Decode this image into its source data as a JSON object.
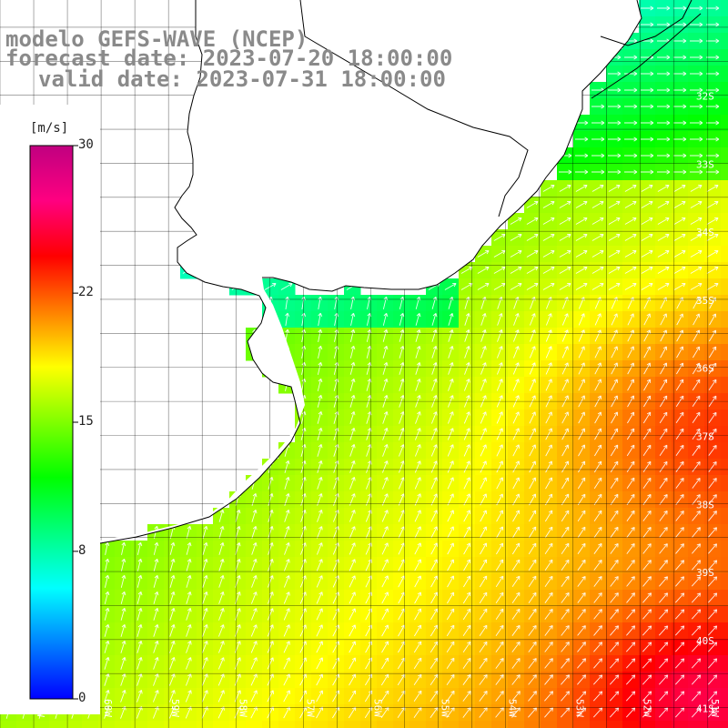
{
  "header": {
    "model": "modelo GEFS-WAVE (NCEP)",
    "forecast": "forecast date: 2023-07-20 18:00:00",
    "valid": "valid date: 2023-07-31 18:00:00"
  },
  "colorbar": {
    "unit": "[m/s]",
    "ticks": [
      {
        "label": "30",
        "value": 30
      },
      {
        "label": "22",
        "value": 22
      },
      {
        "label": "15",
        "value": 15
      },
      {
        "label": "8",
        "value": 8
      },
      {
        "label": "0",
        "value": 0
      }
    ],
    "range": [
      0,
      30
    ],
    "colors": [
      "#0000ff",
      "#0080ff",
      "#00ffff",
      "#00ff80",
      "#00ff00",
      "#80ff00",
      "#ffff00",
      "#ff8000",
      "#ff0000",
      "#ff0080",
      "#c00080"
    ]
  },
  "map": {
    "lon_range": [
      -61.5,
      -50.7
    ],
    "lat_range": [
      -41.3,
      -30.6
    ],
    "lat_labels": [
      "32S",
      "33S",
      "34S",
      "35S",
      "36S",
      "37S",
      "38S",
      "39S",
      "40S",
      "41S"
    ],
    "lon_labels": [
      "61W",
      "60W",
      "59W",
      "58W",
      "57W",
      "56W",
      "55W",
      "54W",
      "53W",
      "52W",
      "51W"
    ],
    "land_color": "#ffffff",
    "grid_color": "#000000",
    "arrow_color": "#ffffff",
    "coastline_color": "#000000"
  }
}
